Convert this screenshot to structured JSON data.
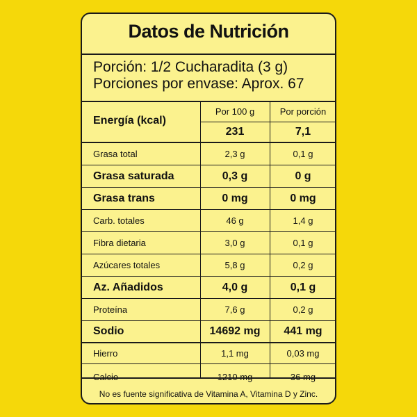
{
  "title": "Datos de Nutrición",
  "serving": {
    "size": "Porción: 1/2 Cucharadita (3 g)",
    "per_container": "Porciones por envase: Aprox. 67"
  },
  "headers": {
    "per100": "Por 100 g",
    "perServing": "Por porción"
  },
  "energy": {
    "name": "Energía (kcal)",
    "per100": "231",
    "perServing": "7,1"
  },
  "rows": [
    {
      "name": "Grasa total",
      "per100": "2,3 g",
      "perServing": "0,1 g",
      "bold": false
    },
    {
      "name": "Grasa saturada",
      "per100": "0,3 g",
      "perServing": "0 g",
      "bold": true
    },
    {
      "name": "Grasa trans",
      "per100": "0 mg",
      "perServing": "0 mg",
      "bold": true
    },
    {
      "name": "Carb. totales",
      "per100": "46 g",
      "perServing": "1,4 g",
      "bold": false
    },
    {
      "name": "Fibra dietaria",
      "per100": "3,0 g",
      "perServing": "0,1 g",
      "bold": false
    },
    {
      "name": "Azúcares totales",
      "per100": "5,8 g",
      "perServing": "0,2 g",
      "bold": false
    },
    {
      "name": "Az. Añadidos",
      "per100": "4,0 g",
      "perServing": "0,1 g",
      "bold": true
    },
    {
      "name": "Proteína",
      "per100": "7,6 g",
      "perServing": "0,2 g",
      "bold": false
    },
    {
      "name": "Sodio",
      "per100": "14692 mg",
      "perServing": "441 mg",
      "bold": true
    },
    {
      "name": "Hierro",
      "per100": "1,1 mg",
      "perServing": "0,03 mg",
      "bold": false
    },
    {
      "name": "Calcio",
      "per100": "1210 mg",
      "perServing": "36 mg",
      "bold": false
    }
  ],
  "footnote": "No es fuente significativa de Vitamina A, Vitamina D y Zinc.",
  "colors": {
    "background": "#f5d80a",
    "label": "#fbf28e",
    "ink": "#1a1a1a"
  }
}
